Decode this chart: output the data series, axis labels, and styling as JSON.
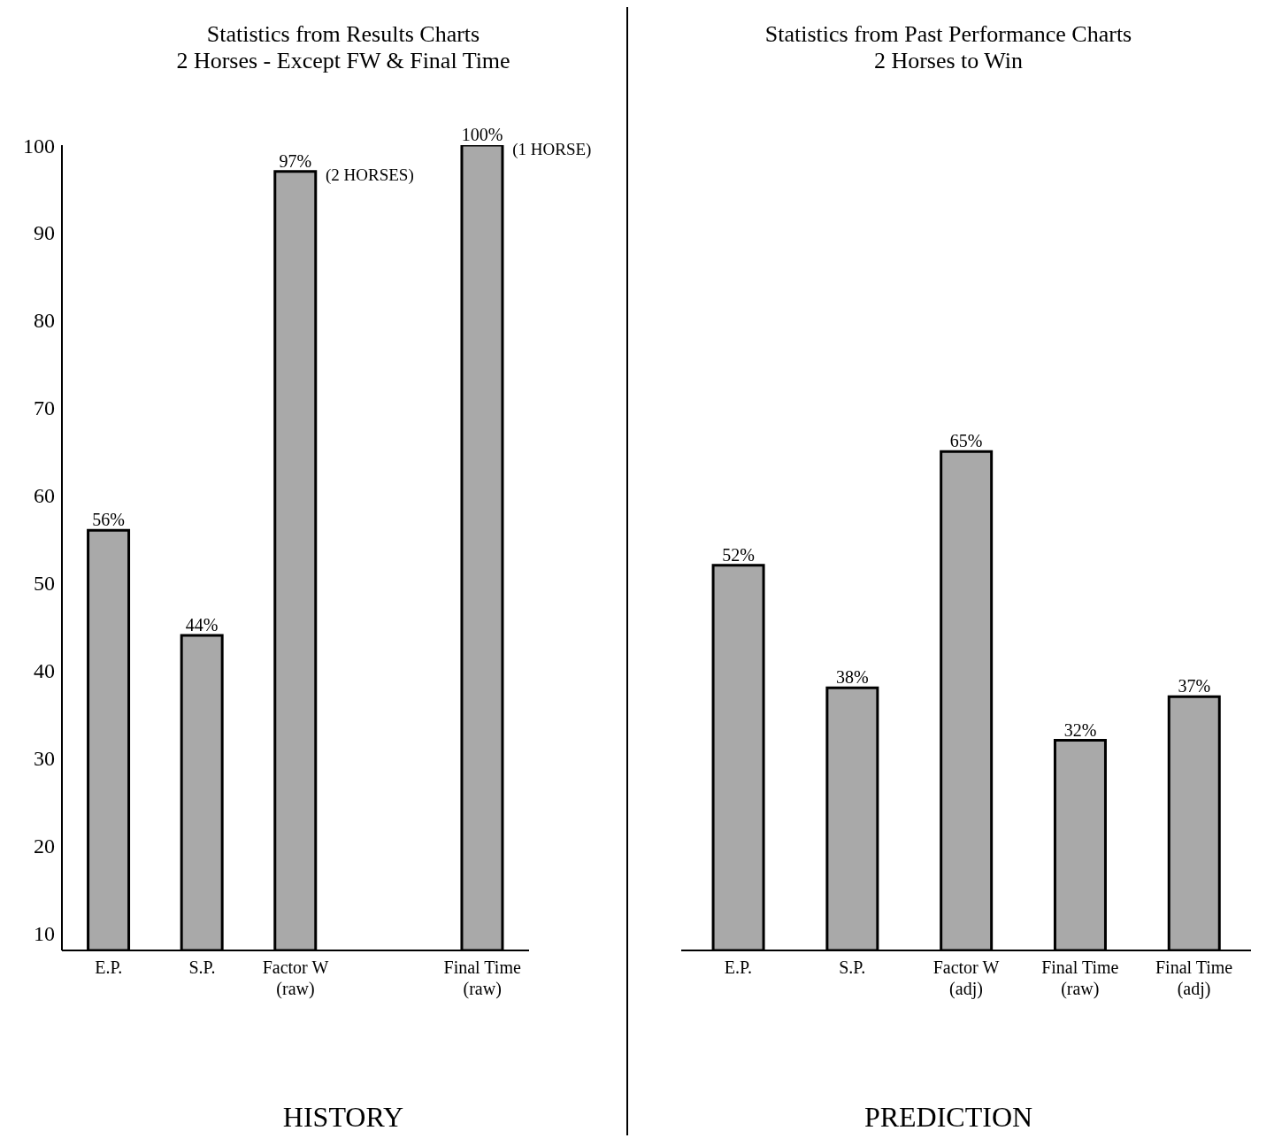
{
  "chart_data": [
    {
      "type": "bar",
      "title": "Statistics from Results Charts",
      "subtitle": "2 Horses - Except FW & Final Time",
      "xlabel": "HISTORY",
      "categories": [
        "E.P.",
        "S.P.",
        "Factor W\n(raw)",
        null,
        "Final Time\n(raw)"
      ],
      "values": [
        56,
        44,
        97,
        null,
        100
      ],
      "value_labels": [
        "56%",
        "44%",
        "97%",
        null,
        "100%"
      ],
      "color": "#a9a9a9",
      "ylim": [
        8,
        100
      ],
      "yticks": [
        10,
        20,
        30,
        40,
        50,
        60,
        70,
        80,
        90,
        100
      ],
      "grid": false,
      "legend": false,
      "annotations": [
        {
          "text": "(2 HORSES)",
          "x": "Factor W\n(raw)",
          "y": 97
        },
        {
          "text": "(1 HORSE)",
          "x": "Final Time\n(raw)",
          "y": 100
        }
      ]
    },
    {
      "type": "bar",
      "title": "Statistics from Past Performance Charts",
      "subtitle": "2 Horses to Win",
      "xlabel": "PREDICTION",
      "categories": [
        "E.P.",
        "S.P.",
        "Factor W\n(adj)",
        "Final Time\n(raw)",
        "Final Time\n(adj)"
      ],
      "values": [
        52,
        38,
        65,
        32,
        37
      ],
      "value_labels": [
        "52%",
        "38%",
        "65%",
        "32%",
        "37%"
      ],
      "color": "#a9a9a9",
      "ylim": [
        8,
        100
      ],
      "yticks": [
        10,
        20,
        30,
        40,
        50,
        60,
        70,
        80,
        90,
        100
      ],
      "tick_labels": "x",
      "grid": false,
      "legend": false
    }
  ]
}
